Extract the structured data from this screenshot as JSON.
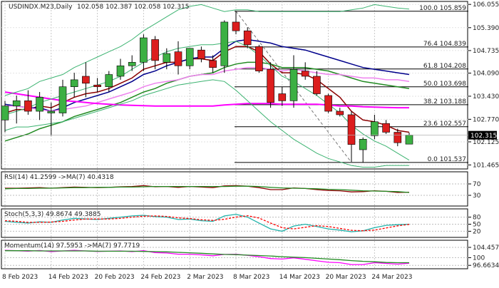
{
  "chart_data": {
    "type": "candlestick",
    "title": "USDINDX.M23,Daily",
    "ohlc_text": "102.058 102.387 102.058 102.315",
    "last_price": "102.315",
    "y_ticks": [
      "106.055",
      "105.390",
      "104.735",
      "104.090",
      "103.430",
      "102.770",
      "102.125",
      "101.465"
    ],
    "ylim": [
      101.35,
      106.14
    ],
    "x_labels": [
      {
        "label": "8 Feb 2023",
        "at": 0
      },
      {
        "label": "14 Feb 2023",
        "at": 4
      },
      {
        "label": "20 Feb 2023",
        "at": 8
      },
      {
        "label": "24 Feb 2023",
        "at": 12
      },
      {
        "label": "2 Mar 2023",
        "at": 16
      },
      {
        "label": "8 Mar 2023",
        "at": 20
      },
      {
        "label": "14 Mar 2023",
        "at": 24
      },
      {
        "label": "20 Mar 2023",
        "at": 28
      },
      {
        "label": "24 Mar 2023",
        "at": 32
      }
    ],
    "candles": [
      {
        "o": 102.75,
        "h": 103.3,
        "l": 102.4,
        "c": 103.15
      },
      {
        "o": 103.15,
        "h": 103.45,
        "l": 102.65,
        "c": 103.3
      },
      {
        "o": 103.3,
        "h": 103.6,
        "l": 102.9,
        "c": 103.0
      },
      {
        "o": 103.0,
        "h": 103.55,
        "l": 102.75,
        "c": 103.4
      },
      {
        "o": 102.95,
        "h": 103.25,
        "l": 102.3,
        "c": 103.0
      },
      {
        "o": 102.95,
        "h": 103.9,
        "l": 102.85,
        "c": 103.7
      },
      {
        "o": 103.7,
        "h": 104.1,
        "l": 103.4,
        "c": 103.9
      },
      {
        "o": 104.0,
        "h": 104.4,
        "l": 103.4,
        "c": 103.8
      },
      {
        "o": 103.75,
        "h": 103.95,
        "l": 103.55,
        "c": 103.7
      },
      {
        "o": 103.7,
        "h": 104.15,
        "l": 103.55,
        "c": 104.05
      },
      {
        "o": 104.0,
        "h": 104.5,
        "l": 103.9,
        "c": 104.3
      },
      {
        "o": 104.3,
        "h": 104.6,
        "l": 104.15,
        "c": 104.4
      },
      {
        "o": 104.4,
        "h": 105.2,
        "l": 104.15,
        "c": 105.1
      },
      {
        "o": 105.05,
        "h": 105.15,
        "l": 104.2,
        "c": 104.45
      },
      {
        "o": 104.4,
        "h": 104.8,
        "l": 104.2,
        "c": 104.65
      },
      {
        "o": 104.7,
        "h": 105.0,
        "l": 104.05,
        "c": 104.3
      },
      {
        "o": 104.3,
        "h": 104.8,
        "l": 104.2,
        "c": 104.8
      },
      {
        "o": 104.75,
        "h": 104.85,
        "l": 104.4,
        "c": 104.5
      },
      {
        "o": 104.45,
        "h": 104.6,
        "l": 104.1,
        "c": 104.25
      },
      {
        "o": 104.3,
        "h": 105.6,
        "l": 104.1,
        "c": 105.55
      },
      {
        "o": 105.55,
        "h": 105.86,
        "l": 105.2,
        "c": 105.3
      },
      {
        "o": 105.3,
        "h": 105.4,
        "l": 104.8,
        "c": 104.9
      },
      {
        "o": 104.85,
        "h": 104.9,
        "l": 104.1,
        "c": 104.15
      },
      {
        "o": 104.2,
        "h": 104.4,
        "l": 103.1,
        "c": 103.25
      },
      {
        "o": 103.5,
        "h": 103.7,
        "l": 103.15,
        "c": 103.3
      },
      {
        "o": 103.3,
        "h": 104.6,
        "l": 103.1,
        "c": 104.2
      },
      {
        "o": 104.15,
        "h": 104.4,
        "l": 103.9,
        "c": 104.0
      },
      {
        "o": 104.0,
        "h": 104.15,
        "l": 103.45,
        "c": 103.5
      },
      {
        "o": 103.45,
        "h": 103.5,
        "l": 102.95,
        "c": 103.0
      },
      {
        "o": 103.0,
        "h": 103.1,
        "l": 102.85,
        "c": 102.9
      },
      {
        "o": 102.9,
        "h": 103.0,
        "l": 101.55,
        "c": 102.05
      },
      {
        "o": 101.9,
        "h": 102.25,
        "l": 101.54,
        "c": 102.2
      },
      {
        "o": 102.3,
        "h": 102.9,
        "l": 102.2,
        "c": 102.7
      },
      {
        "o": 102.65,
        "h": 102.75,
        "l": 102.35,
        "c": 102.4
      },
      {
        "o": 102.4,
        "h": 102.5,
        "l": 102.0,
        "c": 102.1
      },
      {
        "o": 102.06,
        "h": 102.39,
        "l": 102.06,
        "c": 102.32
      }
    ],
    "overlays": [
      {
        "color": "#8b0000",
        "width": 1.5,
        "values": [
          102.95,
          103.05,
          103.05,
          103.15,
          103.1,
          103.25,
          103.4,
          103.5,
          103.55,
          103.65,
          103.8,
          103.95,
          104.2,
          104.3,
          104.4,
          104.4,
          104.5,
          104.5,
          104.45,
          104.7,
          104.85,
          104.85,
          104.7,
          104.35,
          104.1,
          104.1,
          104.05,
          103.9,
          103.65,
          103.4,
          103.0,
          102.75,
          102.7,
          102.6,
          102.45,
          102.4
        ]
      },
      {
        "color": "#00008b",
        "width": 1.5,
        "values": [
          103.2,
          103.15,
          103.1,
          103.1,
          103.0,
          103.1,
          103.25,
          103.35,
          103.45,
          103.55,
          103.7,
          103.85,
          104.05,
          104.15,
          104.3,
          104.4,
          104.5,
          104.55,
          104.55,
          104.8,
          105.0,
          105.05,
          105.0,
          104.95,
          104.85,
          104.8,
          104.75,
          104.65,
          104.55,
          104.45,
          104.35,
          104.25,
          104.2,
          104.15,
          104.1,
          104.05
        ]
      },
      {
        "color": "#228b22",
        "width": 1.5,
        "values": [
          102.15,
          102.25,
          102.35,
          102.5,
          102.6,
          102.7,
          102.85,
          102.95,
          103.05,
          103.15,
          103.25,
          103.4,
          103.55,
          103.65,
          103.8,
          103.9,
          104.0,
          104.05,
          104.1,
          104.25,
          104.35,
          104.4,
          104.4,
          104.35,
          104.25,
          104.25,
          104.25,
          104.2,
          104.15,
          104.05,
          103.95,
          103.85,
          103.8,
          103.75,
          103.7,
          103.65
        ]
      },
      {
        "color": "#ee82ee",
        "width": 1.5,
        "values": [
          103.15,
          103.15,
          103.1,
          103.05,
          103.0,
          103.05,
          103.1,
          103.15,
          103.25,
          103.35,
          103.45,
          103.55,
          103.7,
          103.8,
          103.85,
          103.9,
          104.0,
          104.05,
          104.05,
          104.15,
          104.2,
          104.25,
          104.25,
          104.2,
          104.15,
          104.2,
          104.15,
          104.1,
          104.05,
          104.05,
          104.0,
          103.95,
          103.95,
          103.9,
          103.9,
          103.85
        ]
      },
      {
        "color": "#ff00ff",
        "width": 2,
        "values": [
          103.55,
          103.5,
          103.45,
          103.4,
          103.35,
          103.3,
          103.28,
          103.25,
          103.22,
          103.2,
          103.18,
          103.17,
          103.16,
          103.15,
          103.15,
          103.15,
          103.15,
          103.15,
          103.15,
          103.18,
          103.2,
          103.22,
          103.22,
          103.22,
          103.2,
          103.2,
          103.2,
          103.2,
          103.18,
          103.15,
          103.15,
          103.13,
          103.12,
          103.11,
          103.1,
          103.1
        ]
      },
      {
        "color": "#3cb371",
        "width": 1,
        "values": [
          103.45,
          103.55,
          103.65,
          103.85,
          103.95,
          104.05,
          104.25,
          104.4,
          104.55,
          104.7,
          104.85,
          105.05,
          105.3,
          105.5,
          105.7,
          105.9,
          106.0,
          106.05,
          105.95,
          105.85,
          105.9,
          105.9,
          105.85,
          105.85,
          105.85,
          105.85,
          105.85,
          105.85,
          105.85,
          105.85,
          105.9,
          105.95,
          106.05,
          106.0,
          105.95,
          105.92
        ]
      },
      {
        "color": "#3cb371",
        "width": 1,
        "values": [
          102.45,
          102.55,
          102.55,
          102.6,
          102.65,
          102.7,
          102.8,
          102.9,
          103.0,
          103.1,
          103.2,
          103.3,
          103.45,
          103.55,
          103.65,
          103.75,
          103.8,
          103.85,
          103.9,
          103.85,
          103.6,
          103.3,
          103.0,
          102.7,
          102.45,
          102.2,
          102.0,
          101.8,
          101.65,
          101.55,
          101.45,
          101.4,
          101.4,
          101.45,
          101.45,
          101.45
        ]
      },
      {
        "color": "#3cb371",
        "width": 1,
        "values": [
          102.9,
          103.0,
          103.1,
          103.25,
          103.35,
          103.45,
          103.55,
          103.65,
          103.75,
          103.85,
          104.0,
          104.2,
          104.4,
          104.55,
          104.7,
          104.8,
          104.85,
          104.9,
          104.9,
          104.95,
          105.0,
          104.85,
          104.6,
          104.3,
          104.0,
          103.85,
          103.65,
          103.45,
          103.2,
          102.95,
          102.6,
          102.35,
          102.15,
          102.0,
          101.8,
          101.6
        ]
      }
    ],
    "fibo": [
      {
        "label": "100.0 105.859",
        "value": 105.859
      },
      {
        "label": "76.4 104.839",
        "value": 104.839
      },
      {
        "label": "61.8 104.208",
        "value": 104.208
      },
      {
        "label": "50.0 103.698",
        "value": 103.698
      },
      {
        "label": "38.2 103.188",
        "value": 103.188
      },
      {
        "label": "23.6 102.557",
        "value": 102.557
      },
      {
        "label": "0.0 101.537",
        "value": 101.537
      }
    ],
    "fibo_start": 20,
    "fibo_trend": {
      "from": [
        20,
        105.859
      ],
      "to": [
        30,
        101.537
      ]
    },
    "rsi": {
      "title": "RSI(14) 41.2599 ->MA(7) 40.4318",
      "ylim": [
        0,
        100
      ],
      "ticks": [
        {
          "label": "70",
          "value": 70
        },
        {
          "label": "30",
          "value": 30
        }
      ],
      "series": [
        {
          "color": "#8b0000",
          "values": [
            55,
            55,
            56,
            57,
            55,
            57,
            59,
            58,
            57,
            58,
            60,
            61,
            64,
            60,
            61,
            58,
            61,
            59,
            57,
            63,
            64,
            62,
            57,
            50,
            50,
            56,
            54,
            50,
            47,
            46,
            42,
            43,
            46,
            44,
            40,
            41
          ]
        },
        {
          "color": "#228b22",
          "values": [
            53,
            54,
            54,
            55,
            55,
            56,
            57,
            57,
            58,
            58,
            59,
            59,
            60,
            61,
            61,
            61,
            61,
            61,
            61,
            61,
            62,
            62,
            61,
            58,
            56,
            55,
            54,
            53,
            51,
            50,
            48,
            46,
            45,
            44,
            43,
            40
          ]
        }
      ]
    },
    "stoch": {
      "title": "Stoch(5,3,3) 49.8674 49.3885",
      "ylim": [
        0,
        100
      ],
      "ticks": [
        {
          "label": "80",
          "value": 80
        },
        {
          "label": "50",
          "value": 50
        },
        {
          "label": "20",
          "value": 20
        }
      ],
      "series": [
        {
          "color": "#20b2aa",
          "values": [
            62,
            58,
            55,
            60,
            58,
            68,
            75,
            72,
            70,
            75,
            80,
            85,
            88,
            82,
            80,
            70,
            72,
            65,
            62,
            85,
            92,
            80,
            55,
            30,
            20,
            42,
            50,
            40,
            30,
            25,
            18,
            22,
            35,
            45,
            48,
            50
          ]
        },
        {
          "color": "#ff0000",
          "dash": "3,2",
          "values": [
            65,
            62,
            58,
            58,
            59,
            62,
            68,
            72,
            72,
            72,
            75,
            80,
            84,
            85,
            83,
            77,
            74,
            69,
            66,
            71,
            80,
            86,
            76,
            55,
            35,
            30,
            37,
            44,
            40,
            32,
            24,
            22,
            25,
            34,
            43,
            49
          ]
        }
      ]
    },
    "momentum": {
      "title": "Momentum(14) 97.5953 ->MA(7) 97.7719",
      "last_label": "96.6634",
      "ylim": [
        95.8,
        106.0
      ],
      "ticks": [
        {
          "label": "104.4571",
          "value": 104.4571
        },
        {
          "label": "100",
          "value": 100
        },
        {
          "label": "96.6634",
          "value": 96.6634
        }
      ],
      "series": [
        {
          "color": "#ff00ff",
          "values": [
            103.2,
            103.0,
            102.8,
            103.1,
            102.6,
            102.9,
            103.2,
            102.9,
            102.7,
            102.8,
            102.9,
            102.6,
            103.0,
            102.2,
            102.0,
            101.5,
            101.5,
            101.2,
            100.8,
            101.4,
            101.5,
            101.0,
            100.4,
            99.6,
            99.4,
            99.9,
            99.3,
            98.6,
            98.0,
            97.8,
            97.0,
            97.0,
            97.8,
            97.5,
            97.2,
            97.6
          ]
        },
        {
          "color": "#228b22",
          "values": [
            103.0,
            103.0,
            103.0,
            102.9,
            102.9,
            102.9,
            102.9,
            102.9,
            102.8,
            102.8,
            102.8,
            102.8,
            102.7,
            102.6,
            102.5,
            102.3,
            102.1,
            101.9,
            101.6,
            101.4,
            101.3,
            101.1,
            100.9,
            100.7,
            100.4,
            100.2,
            100.0,
            99.7,
            99.4,
            99.1,
            98.7,
            98.4,
            98.2,
            97.9,
            97.8,
            97.8
          ]
        }
      ]
    }
  }
}
